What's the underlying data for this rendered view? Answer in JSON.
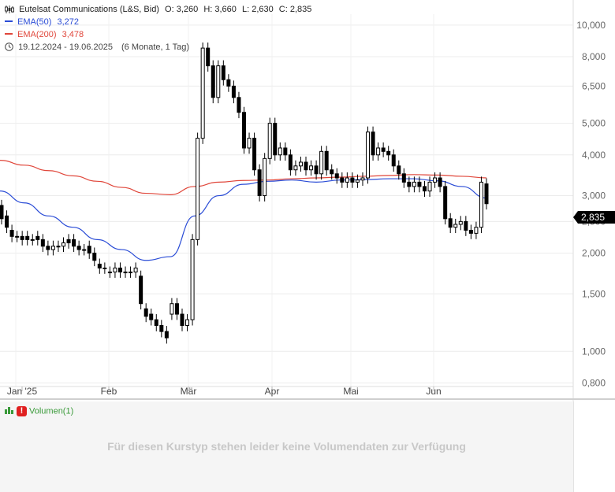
{
  "header": {
    "instrument": "Eutelsat Communications (L&S, Bid)",
    "open": "O: 3,260",
    "high": "H: 3,660",
    "low": "L: 2,630",
    "close": "C: 2,835"
  },
  "legend": {
    "ema50_label": "EMA(50)",
    "ema50_value": "3,272",
    "ema200_label": "EMA(200)",
    "ema200_value": "3,478",
    "date_range": "19.12.2024 - 19.06.2025",
    "period": "(6 Monate, 1 Tag)"
  },
  "last_price": "2,835",
  "volume": {
    "label": "Volumen(1)",
    "message": "Für diesen Kurstyp stehen leider keine Volumendaten zur Verfügung"
  },
  "colors": {
    "ema50": "#2a4cd6",
    "ema200": "#e0463a",
    "candle": "#000000",
    "badge": "#e02020"
  },
  "chart_data": {
    "type": "candlestick",
    "y_scale": "log",
    "ylim": [
      0.78,
      10.8
    ],
    "y_ticks": [
      "10,000",
      "8,000",
      "6,500",
      "5,000",
      "4,000",
      "3,000",
      "2,500",
      "2,000",
      "1,500",
      "1,000",
      "0,800"
    ],
    "x_ticks": [
      "Jan '25",
      "Feb",
      "Mär",
      "Apr",
      "Mai",
      "Jun"
    ],
    "series": [
      {
        "name": "EMA(50)",
        "values": [
          3.1,
          2.85,
          2.6,
          2.4,
          2.2,
          2.05,
          1.9,
          1.95,
          2.6,
          3.0,
          3.25,
          3.32,
          3.35,
          3.3,
          3.35,
          3.36,
          3.38,
          3.38,
          3.33,
          3.2,
          2.95
        ]
      },
      {
        "name": "EMA(200)",
        "values": [
          3.85,
          3.72,
          3.58,
          3.45,
          3.32,
          3.18,
          3.05,
          3.02,
          3.2,
          3.3,
          3.34,
          3.35,
          3.38,
          3.4,
          3.42,
          3.44,
          3.46,
          3.48,
          3.47,
          3.44,
          3.4
        ]
      }
    ],
    "candles": [
      [
        2.8,
        2.55
      ],
      [
        2.6,
        2.4
      ],
      [
        2.35,
        2.25
      ],
      [
        2.25,
        2.25
      ],
      [
        2.25,
        2.2
      ],
      [
        2.25,
        2.2
      ],
      [
        2.2,
        2.2
      ],
      [
        2.25,
        2.2
      ],
      [
        2.2,
        2.1
      ],
      [
        2.1,
        2.05
      ],
      [
        2.05,
        2.1
      ],
      [
        2.1,
        2.1
      ],
      [
        2.1,
        2.15
      ],
      [
        2.2,
        2.15
      ],
      [
        2.2,
        2.1
      ],
      [
        2.1,
        2.05
      ],
      [
        2.05,
        2.05
      ],
      [
        2.1,
        2.0
      ],
      [
        2.0,
        1.9
      ],
      [
        1.85,
        1.8
      ],
      [
        1.8,
        1.8
      ],
      [
        1.75,
        1.75
      ],
      [
        1.75,
        1.8
      ],
      [
        1.8,
        1.75
      ],
      [
        1.75,
        1.75
      ],
      [
        1.75,
        1.75
      ],
      [
        1.75,
        1.8
      ],
      [
        1.7,
        1.4
      ],
      [
        1.35,
        1.28
      ],
      [
        1.3,
        1.25
      ],
      [
        1.25,
        1.2
      ],
      [
        1.2,
        1.15
      ],
      [
        1.15,
        1.1
      ],
      [
        1.3,
        1.4
      ],
      [
        1.4,
        1.3
      ],
      [
        1.3,
        1.2
      ],
      [
        1.2,
        1.25
      ],
      [
        1.25,
        2.2
      ],
      [
        2.2,
        4.5
      ],
      [
        4.5,
        8.5
      ],
      [
        8.5,
        7.5
      ],
      [
        7.5,
        6.0
      ],
      [
        6.0,
        7.5
      ],
      [
        7.5,
        6.8
      ],
      [
        6.8,
        6.5
      ],
      [
        6.5,
        6.0
      ],
      [
        6.0,
        5.4
      ],
      [
        5.4,
        4.2
      ],
      [
        4.2,
        4.5
      ],
      [
        4.5,
        3.6
      ],
      [
        3.6,
        3.0
      ],
      [
        3.0,
        3.9
      ],
      [
        3.9,
        5.0
      ],
      [
        5.0,
        4.0
      ],
      [
        4.0,
        4.2
      ],
      [
        4.2,
        4.0
      ],
      [
        4.0,
        3.6
      ],
      [
        3.6,
        3.7
      ],
      [
        3.7,
        3.8
      ],
      [
        3.8,
        3.6
      ],
      [
        3.6,
        3.7
      ],
      [
        3.7,
        3.5
      ],
      [
        3.5,
        4.1
      ],
      [
        4.1,
        3.6
      ],
      [
        3.6,
        3.5
      ],
      [
        3.5,
        3.4
      ],
      [
        3.4,
        3.3
      ],
      [
        3.3,
        3.4
      ],
      [
        3.4,
        3.3
      ],
      [
        3.3,
        3.35
      ],
      [
        3.35,
        3.4
      ],
      [
        3.4,
        4.7
      ],
      [
        4.7,
        4.0
      ],
      [
        4.0,
        4.2
      ],
      [
        4.2,
        4.1
      ],
      [
        4.1,
        4.0
      ],
      [
        4.0,
        3.7
      ],
      [
        3.7,
        3.5
      ],
      [
        3.5,
        3.3
      ],
      [
        3.3,
        3.2
      ],
      [
        3.2,
        3.3
      ],
      [
        3.3,
        3.2
      ],
      [
        3.2,
        3.1
      ],
      [
        3.1,
        3.3
      ],
      [
        3.3,
        3.4
      ],
      [
        3.4,
        3.2
      ],
      [
        3.2,
        2.55
      ],
      [
        2.55,
        2.4
      ],
      [
        2.4,
        2.45
      ],
      [
        2.45,
        2.5
      ],
      [
        2.5,
        2.35
      ],
      [
        2.35,
        2.3
      ],
      [
        2.3,
        2.4
      ],
      [
        2.4,
        3.3
      ],
      [
        3.26,
        2.835
      ]
    ]
  }
}
